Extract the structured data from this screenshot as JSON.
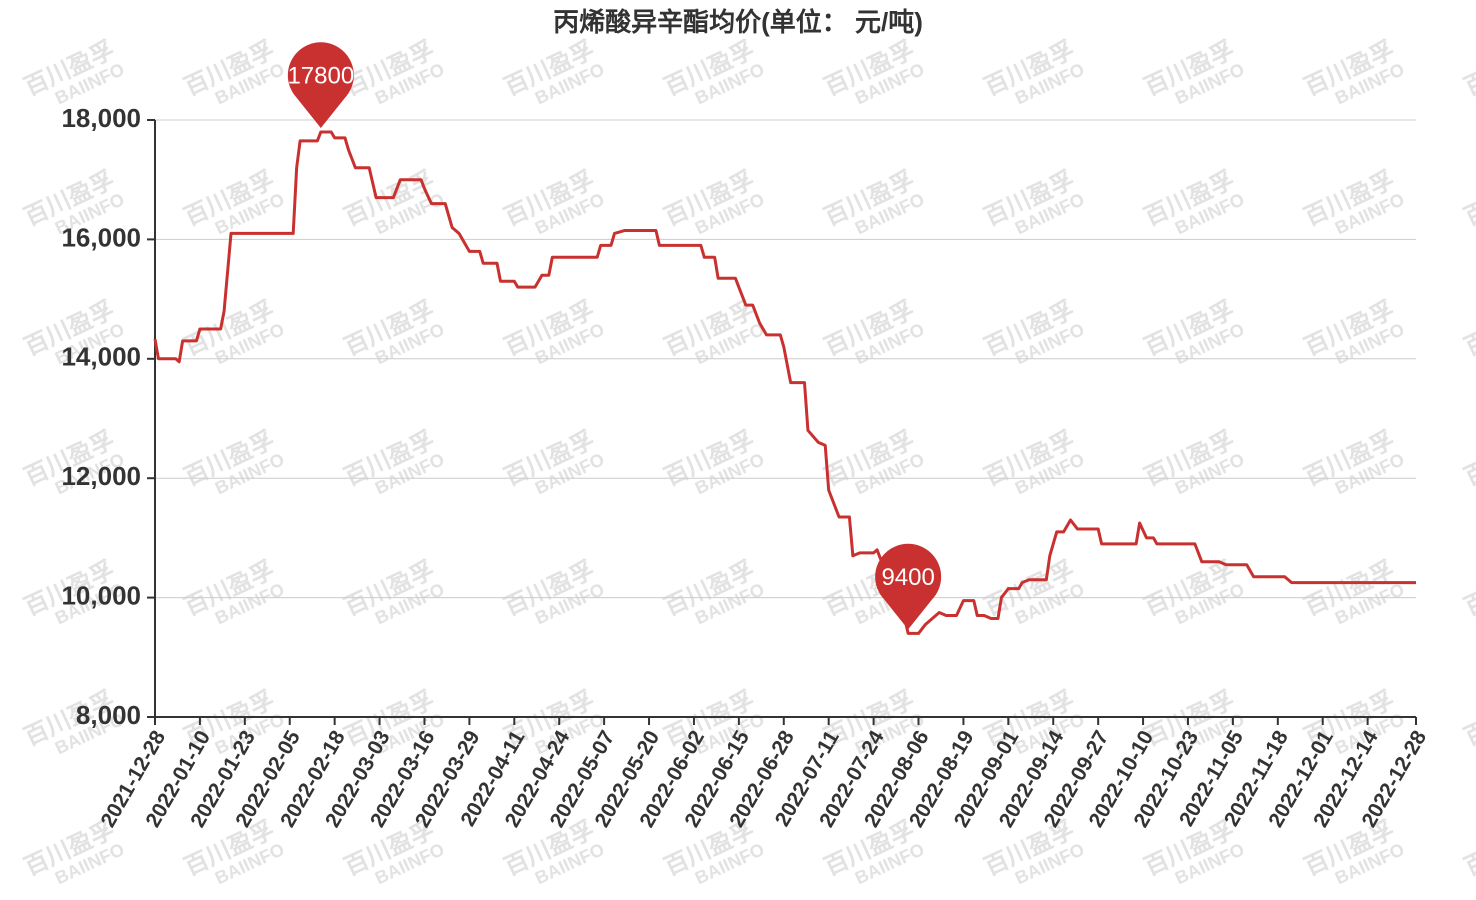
{
  "chart_data": {
    "type": "line",
    "title": "丙烯酸异辛酯均价(单位： 元/吨)",
    "watermark": "百川盈孚",
    "watermark_sub": "BAIINFO",
    "color": "#c8312f",
    "grid": true,
    "ylim": [
      8000,
      18000
    ],
    "yticks": [
      {
        "value": 8000,
        "label": "8,000"
      },
      {
        "value": 10000,
        "label": "10,000"
      },
      {
        "value": 12000,
        "label": "12,000"
      },
      {
        "value": 14000,
        "label": "14,000"
      },
      {
        "value": 16000,
        "label": "16,000"
      },
      {
        "value": 18000,
        "label": "18,000"
      }
    ],
    "xlim": [
      "2021-12-28",
      "2022-12-28"
    ],
    "xticks": [
      "2021-12-28",
      "2022-01-10",
      "2022-01-23",
      "2022-02-05",
      "2022-02-18",
      "2022-03-03",
      "2022-03-16",
      "2022-03-29",
      "2022-04-11",
      "2022-04-24",
      "2022-05-07",
      "2022-05-20",
      "2022-06-02",
      "2022-06-15",
      "2022-06-28",
      "2022-07-11",
      "2022-07-24",
      "2022-08-06",
      "2022-08-19",
      "2022-09-01",
      "2022-09-14",
      "2022-09-27",
      "2022-10-10",
      "2022-10-23",
      "2022-11-05",
      "2022-11-18",
      "2022-12-01",
      "2022-12-14",
      "2022-12-28"
    ],
    "x": [
      "2021-12-28",
      "2021-12-29",
      "2022-01-03",
      "2022-01-04",
      "2022-01-05",
      "2022-01-09",
      "2022-01-10",
      "2022-01-16",
      "2022-01-17",
      "2022-01-19",
      "2022-02-06",
      "2022-02-07",
      "2022-02-08",
      "2022-02-13",
      "2022-02-14",
      "2022-02-17",
      "2022-02-18",
      "2022-02-21",
      "2022-02-22",
      "2022-02-24",
      "2022-02-28",
      "2022-03-02",
      "2022-03-07",
      "2022-03-09",
      "2022-03-15",
      "2022-03-16",
      "2022-03-18",
      "2022-03-22",
      "2022-03-24",
      "2022-03-26",
      "2022-03-29",
      "2022-04-01",
      "2022-04-02",
      "2022-04-06",
      "2022-04-07",
      "2022-04-11",
      "2022-04-12",
      "2022-04-17",
      "2022-04-19",
      "2022-04-21",
      "2022-04-22",
      "2022-05-05",
      "2022-05-06",
      "2022-05-09",
      "2022-05-10",
      "2022-05-13",
      "2022-05-22",
      "2022-05-23",
      "2022-06-04",
      "2022-06-05",
      "2022-06-08",
      "2022-06-09",
      "2022-06-14",
      "2022-06-15",
      "2022-06-17",
      "2022-06-19",
      "2022-06-21",
      "2022-06-23",
      "2022-06-27",
      "2022-06-28",
      "2022-06-30",
      "2022-07-04",
      "2022-07-05",
      "2022-07-08",
      "2022-07-10",
      "2022-07-11",
      "2022-07-14",
      "2022-07-17",
      "2022-07-18",
      "2022-07-20",
      "2022-07-24",
      "2022-07-25",
      "2022-07-26",
      "2022-07-29",
      "2022-08-03",
      "2022-08-06",
      "2022-08-08",
      "2022-08-11",
      "2022-08-12",
      "2022-08-14",
      "2022-08-17",
      "2022-08-19",
      "2022-08-22",
      "2022-08-23",
      "2022-08-25",
      "2022-08-27",
      "2022-08-29",
      "2022-08-30",
      "2022-09-01",
      "2022-09-04",
      "2022-09-05",
      "2022-09-07",
      "2022-09-12",
      "2022-09-13",
      "2022-09-15",
      "2022-09-17",
      "2022-09-19",
      "2022-09-21",
      "2022-09-27",
      "2022-09-28",
      "2022-10-08",
      "2022-10-09",
      "2022-10-11",
      "2022-10-13",
      "2022-10-14",
      "2022-10-25",
      "2022-10-27",
      "2022-11-01",
      "2022-11-03",
      "2022-11-09",
      "2022-11-11",
      "2022-11-20",
      "2022-11-22",
      "2022-12-28"
    ],
    "values": [
      14330,
      14000,
      14000,
      13950,
      14300,
      14300,
      14500,
      14500,
      14800,
      16100,
      16100,
      17200,
      17650,
      17650,
      17800,
      17800,
      17700,
      17700,
      17500,
      17200,
      17200,
      16700,
      16700,
      17000,
      17000,
      16850,
      16600,
      16600,
      16200,
      16100,
      15800,
      15800,
      15600,
      15600,
      15300,
      15300,
      15200,
      15200,
      15400,
      15400,
      15700,
      15700,
      15900,
      15900,
      16100,
      16150,
      16150,
      15900,
      15900,
      15700,
      15700,
      15350,
      15350,
      15200,
      14900,
      14900,
      14600,
      14400,
      14400,
      14200,
      13600,
      13600,
      12800,
      12600,
      12550,
      11800,
      11350,
      11350,
      10700,
      10750,
      10750,
      10800,
      10650,
      10650,
      9400,
      9400,
      9550,
      9700,
      9750,
      9700,
      9700,
      9950,
      9950,
      9700,
      9700,
      9650,
      9650,
      10000,
      10150,
      10150,
      10250,
      10300,
      10300,
      10700,
      11100,
      11100,
      11300,
      11150,
      11150,
      10900,
      10900,
      11250,
      11000,
      11000,
      10900,
      10900,
      10600,
      10600,
      10550,
      10550,
      10350,
      10350,
      10250,
      10250
    ],
    "annotations": [
      {
        "x": "2022-02-14",
        "value": 17800
      },
      {
        "x": "2022-08-03",
        "value": 9400
      }
    ]
  }
}
